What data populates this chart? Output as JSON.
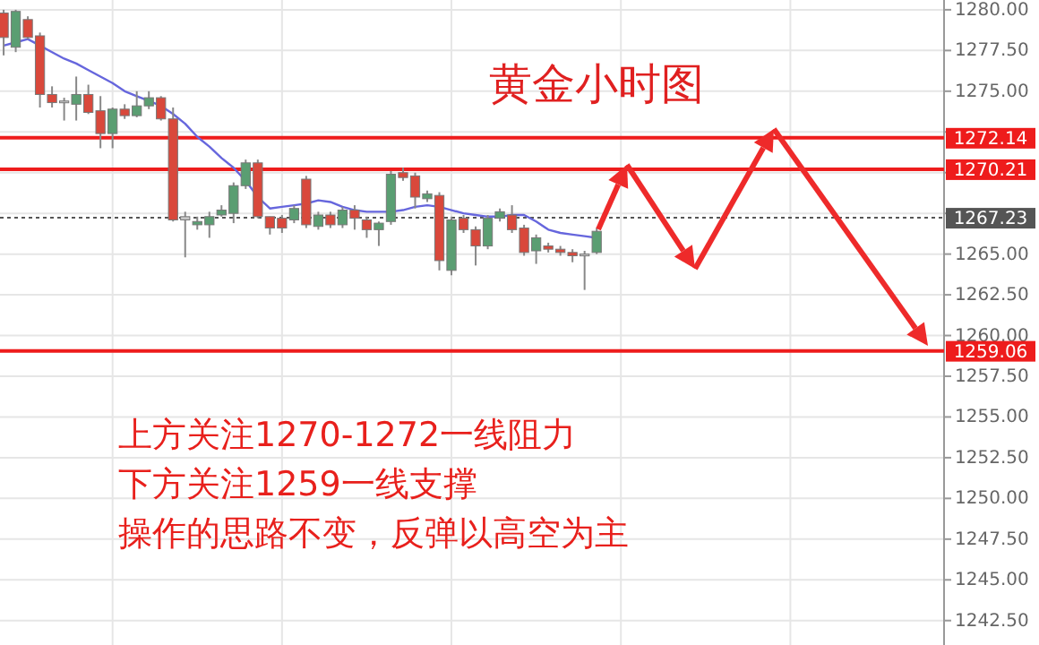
{
  "chart_data": {
    "type": "candlestick",
    "title": "黄金小时图",
    "annotations": [
      "上方关注1270-1272一线阻力",
      "下方关注1259一线支撑",
      "操作的思路不变，反弹以高空为主"
    ],
    "categories": [
      null,
      null,
      null,
      null,
      null,
      null,
      null,
      null,
      null,
      null,
      null,
      null,
      null,
      null,
      null,
      null,
      null,
      null,
      null,
      null,
      null,
      null,
      null,
      null,
      null,
      null,
      null,
      null,
      null,
      null,
      null,
      null,
      null,
      null,
      null,
      null,
      null,
      null,
      null,
      null,
      null,
      null,
      null,
      null,
      null,
      null,
      null,
      null,
      null,
      null,
      null,
      null,
      null,
      null,
      null,
      null,
      null,
      null,
      null,
      null,
      null,
      null,
      null,
      null,
      null,
      null,
      null,
      null,
      null,
      null,
      null,
      null,
      null,
      null,
      null,
      null,
      null,
      null
    ],
    "ohlc": [
      [
        1279.8,
        1280.0,
        1277.2,
        1278.3
      ],
      [
        1277.7,
        1280.0,
        1277.4,
        1279.9
      ],
      [
        1279.4,
        1279.6,
        1278.2,
        1278.3
      ],
      [
        1278.4,
        1278.6,
        1274.0,
        1274.8
      ],
      [
        1274.8,
        1275.3,
        1274.0,
        1274.3
      ],
      [
        1274.4,
        1274.6,
        1273.2,
        1274.4
      ],
      [
        1274.2,
        1275.9,
        1273.2,
        1274.8
      ],
      [
        1274.8,
        1275.4,
        1273.6,
        1273.7
      ],
      [
        1273.8,
        1274.7,
        1271.5,
        1272.4
      ],
      [
        1272.4,
        1274.0,
        1271.5,
        1273.9
      ],
      [
        1273.9,
        1274.2,
        1273.3,
        1273.5
      ],
      [
        1273.5,
        1275.0,
        1273.4,
        1274.1
      ],
      [
        1274.1,
        1275.0,
        1273.9,
        1274.6
      ],
      [
        1274.6,
        1274.7,
        1273.2,
        1273.3
      ],
      [
        1273.3,
        1274.0,
        1267.0,
        1267.1
      ],
      [
        1267.1,
        1267.6,
        1264.8,
        1267.3
      ],
      [
        1266.8,
        1267.3,
        1266.5,
        1267.0
      ],
      [
        1266.8,
        1267.6,
        1266.0,
        1267.3
      ],
      [
        1267.4,
        1268.0,
        1267.3,
        1267.7
      ],
      [
        1267.5,
        1269.4,
        1266.9,
        1269.2
      ],
      [
        1269.2,
        1270.8,
        1269.0,
        1270.6
      ],
      [
        1270.6,
        1270.8,
        1267.2,
        1267.3
      ],
      [
        1267.3,
        1267.3,
        1266.2,
        1266.6
      ],
      [
        1267.2,
        1267.4,
        1266.3,
        1266.6
      ],
      [
        1267.1,
        1268.0,
        1266.9,
        1267.8
      ],
      [
        1269.6,
        1269.8,
        1266.6,
        1266.8
      ],
      [
        1266.7,
        1267.6,
        1266.5,
        1267.4
      ],
      [
        1267.4,
        1267.6,
        1266.6,
        1266.8
      ],
      [
        1266.8,
        1267.9,
        1266.6,
        1267.7
      ],
      [
        1267.7,
        1268.0,
        1266.5,
        1267.2
      ],
      [
        1267.1,
        1267.3,
        1266.0,
        1266.5
      ],
      [
        1266.5,
        1267.0,
        1265.5,
        1266.9
      ],
      [
        1267.0,
        1270.1,
        1266.8,
        1269.9
      ],
      [
        1270.0,
        1270.3,
        1269.5,
        1269.7
      ],
      [
        1269.8,
        1270.0,
        1267.8,
        1268.5
      ],
      [
        1268.4,
        1268.9,
        1268.2,
        1268.7
      ],
      [
        1268.6,
        1268.8,
        1264.0,
        1264.6
      ],
      [
        1264.0,
        1267.3,
        1263.7,
        1267.1
      ],
      [
        1267.2,
        1267.4,
        1266.3,
        1266.5
      ],
      [
        1266.5,
        1266.7,
        1264.3,
        1265.5
      ],
      [
        1265.5,
        1267.4,
        1265.3,
        1267.2
      ],
      [
        1267.2,
        1267.8,
        1267.0,
        1267.6
      ],
      [
        1267.4,
        1268.0,
        1266.3,
        1266.5
      ],
      [
        1266.6,
        1266.8,
        1264.9,
        1265.1
      ],
      [
        1265.2,
        1266.2,
        1264.4,
        1266.0
      ],
      [
        1265.5,
        1265.7,
        1265.1,
        1265.3
      ],
      [
        1265.3,
        1265.5,
        1264.9,
        1265.1
      ],
      [
        1265.1,
        1265.3,
        1264.5,
        1264.9
      ],
      [
        1264.9,
        1265.2,
        1262.8,
        1265.0
      ],
      [
        1265.1,
        1266.6,
        1265.0,
        1266.4
      ],
      null,
      null,
      null,
      null,
      null,
      null,
      null,
      null,
      null,
      null,
      null,
      null,
      null,
      null,
      null,
      null,
      null,
      null,
      null,
      null,
      null,
      null,
      null,
      null,
      null,
      null,
      null,
      null
    ],
    "colors": [
      "#d9483b",
      "#5a9e72",
      "#d9483b",
      "#d9483b",
      "#d9483b",
      "#c8c8c8",
      "#5a9e72",
      "#d9483b",
      "#d9483b",
      "#5a9e72",
      "#d9483b",
      "#5a9e72",
      "#5a9e72",
      "#d9483b",
      "#d9483b",
      "#c8c8c8",
      "#5a9e72",
      "#5a9e72",
      "#5a9e72",
      "#5a9e72",
      "#5a9e72",
      "#d9483b",
      "#d9483b",
      "#d9483b",
      "#5a9e72",
      "#d9483b",
      "#5a9e72",
      "#d9483b",
      "#5a9e72",
      "#d9483b",
      "#d9483b",
      "#5a9e72",
      "#5a9e72",
      "#d9483b",
      "#d9483b",
      "#5a9e72",
      "#d9483b",
      "#5a9e72",
      "#d9483b",
      "#d9483b",
      "#5a9e72",
      "#5a9e72",
      "#d9483b",
      "#d9483b",
      "#5a9e72",
      "#d9483b",
      "#d9483b",
      "#d9483b",
      "#c8c8c8",
      "#5a9e72",
      null,
      null,
      null,
      null,
      null,
      null,
      null,
      null,
      null,
      null,
      null,
      null,
      null,
      null,
      null,
      null,
      null,
      null,
      null,
      null,
      null,
      null,
      null,
      null,
      null,
      null,
      null,
      null
    ],
    "series": [
      {
        "type": "line",
        "color": "#6666dd",
        "values": [
          1277.8,
          1278.0,
          1278.2,
          1277.8,
          1277.4,
          1277.0,
          1276.7,
          1276.3,
          1275.9,
          1275.5,
          1275.0,
          1274.7,
          1274.4,
          1274.1,
          1273.6,
          1273.0,
          1272.2,
          1271.6,
          1270.9,
          1270.3,
          1269.5,
          1268.5,
          1267.8,
          1267.9,
          1268.0,
          1268.1,
          1268.3,
          1268.2,
          1267.9,
          1267.7,
          1267.6,
          1267.6,
          1267.6,
          1267.7,
          1267.9,
          1268.0,
          1267.9,
          1267.7,
          1267.5,
          1267.4,
          1267.3,
          1267.3,
          1267.4,
          1267.4,
          1267.0,
          1266.5,
          1266.3,
          1266.2,
          1266.1,
          1266.0,
          null,
          null,
          null,
          null,
          null,
          null,
          null,
          null,
          null,
          null,
          null,
          null,
          null,
          null,
          null,
          null,
          null,
          null,
          null,
          null,
          null,
          null,
          null,
          null,
          null,
          null,
          null,
          null
        ]
      }
    ],
    "ylim": [
      1241.0,
      1280.6
    ],
    "yticks": [
      {
        "value": 1242.5,
        "label": "1242.50"
      },
      {
        "value": 1245,
        "label": "1245.00"
      },
      {
        "value": 1247.5,
        "label": "1247.50"
      },
      {
        "value": 1250,
        "label": "1250.00"
      },
      {
        "value": 1252.5,
        "label": "1252.50"
      },
      {
        "value": 1255,
        "label": "1255.00"
      },
      {
        "value": 1257.5,
        "label": "1257.50"
      },
      {
        "value": 1260,
        "label": "1260.00"
      },
      {
        "value": 1262.5,
        "label": "1262.50"
      },
      {
        "value": 1265,
        "label": "1265.00"
      },
      {
        "value": 1267.5,
        "label": null
      },
      {
        "value": 1270,
        "label": null
      },
      {
        "value": 1272.5,
        "label": null
      },
      {
        "value": 1275,
        "label": "1275.00"
      },
      {
        "value": 1277.5,
        "label": "1277.50"
      },
      {
        "value": 1280,
        "label": "1280.00"
      }
    ],
    "ref_lines": [
      {
        "axis": "y",
        "value": 1272.14,
        "label": "1272.14",
        "color": "#ee1c1c",
        "line_style": "solid"
      },
      {
        "axis": "y",
        "value": 1270.21,
        "label": "1270.21",
        "color": "#ee1c1c",
        "line_style": "solid"
      },
      {
        "axis": "y",
        "value": 1259.06,
        "label": "1259.06",
        "color": "#ee1c1c",
        "line_style": "solid"
      },
      {
        "axis": "y",
        "value": 1267.23,
        "label": "1267.23",
        "color": "#555555",
        "line_style": "dotted"
      }
    ],
    "grid": true,
    "marker": "none",
    "line_style": "solid"
  }
}
